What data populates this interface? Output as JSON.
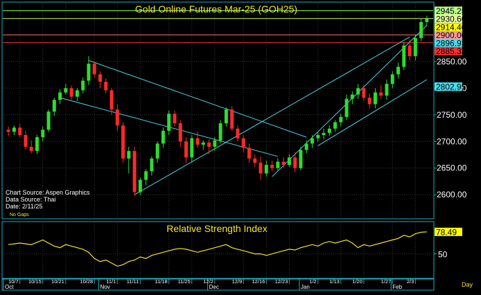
{
  "chart_data": [
    {
      "type": "candlestick",
      "title": "Gold Online Futures Mar-25 (GOH25)",
      "ylim": [
        2560,
        2955
      ],
      "grid": true,
      "price_ticks": [
        "2850.00",
        "2800.00",
        "2750.00",
        "2700.00",
        "2650.00",
        "2600.00"
      ],
      "price_labels": [
        {
          "text": "2945.25",
          "value": 2945.25,
          "bg": "#b8ff8a"
        },
        {
          "text": "2930.60",
          "value": 2930.6,
          "bg": "#e6ff9c"
        },
        {
          "text": "2914.40",
          "value": 2914.4,
          "bg": "#ffff00"
        },
        {
          "text": "2900.00",
          "value": 2900.0,
          "bg": "#ff9a9a"
        },
        {
          "text": "2896.93",
          "value": 2896.93,
          "bg": "#46e0f0"
        },
        {
          "text": "2885.33",
          "value": 2885.33,
          "bg": "#ff3030"
        },
        {
          "text": "2802.95",
          "value": 2802.95,
          "bg": "#46e0f0"
        }
      ],
      "horizontal_lines": [
        {
          "value": 2945.25,
          "color": "#80ff40"
        },
        {
          "value": 2930.6,
          "color": "#c8ff60"
        },
        {
          "value": 2900.0,
          "color": "#ff7070"
        },
        {
          "value": 2885.33,
          "color": "#ff3030"
        }
      ],
      "candles": [
        [
          2722,
          2728,
          2710,
          2718
        ],
        [
          2718,
          2730,
          2712,
          2726
        ],
        [
          2726,
          2732,
          2708,
          2712
        ],
        [
          2712,
          2720,
          2685,
          2690
        ],
        [
          2690,
          2702,
          2678,
          2682
        ],
        [
          2682,
          2712,
          2676,
          2708
        ],
        [
          2708,
          2728,
          2700,
          2722
        ],
        [
          2722,
          2760,
          2718,
          2756
        ],
        [
          2756,
          2782,
          2748,
          2778
        ],
        [
          2778,
          2798,
          2770,
          2792
        ],
        [
          2792,
          2808,
          2788,
          2800
        ],
        [
          2800,
          2805,
          2778,
          2784
        ],
        [
          2784,
          2800,
          2776,
          2796
        ],
        [
          2796,
          2820,
          2790,
          2814
        ],
        [
          2814,
          2860,
          2806,
          2846
        ],
        [
          2846,
          2850,
          2820,
          2826
        ],
        [
          2826,
          2832,
          2800,
          2812
        ],
        [
          2812,
          2818,
          2790,
          2796
        ],
        [
          2796,
          2800,
          2750,
          2760
        ],
        [
          2760,
          2770,
          2720,
          2730
        ],
        [
          2730,
          2736,
          2660,
          2668
        ],
        [
          2668,
          2690,
          2640,
          2682
        ],
        [
          2682,
          2690,
          2598,
          2605
        ],
        [
          2605,
          2632,
          2600,
          2628
        ],
        [
          2628,
          2648,
          2618,
          2644
        ],
        [
          2644,
          2672,
          2636,
          2668
        ],
        [
          2668,
          2700,
          2660,
          2696
        ],
        [
          2696,
          2726,
          2688,
          2720
        ],
        [
          2720,
          2758,
          2712,
          2752
        ],
        [
          2752,
          2758,
          2728,
          2734
        ],
        [
          2734,
          2740,
          2690,
          2700
        ],
        [
          2700,
          2708,
          2660,
          2670
        ],
        [
          2670,
          2712,
          2662,
          2706
        ],
        [
          2706,
          2718,
          2688,
          2694
        ],
        [
          2694,
          2702,
          2684,
          2698
        ],
        [
          2698,
          2704,
          2676,
          2690
        ],
        [
          2690,
          2708,
          2682,
          2702
        ],
        [
          2702,
          2740,
          2696,
          2734
        ],
        [
          2734,
          2764,
          2728,
          2760
        ],
        [
          2760,
          2766,
          2720,
          2724
        ],
        [
          2724,
          2730,
          2700,
          2706
        ],
        [
          2706,
          2712,
          2680,
          2688
        ],
        [
          2688,
          2696,
          2660,
          2668
        ],
        [
          2668,
          2676,
          2652,
          2660
        ],
        [
          2660,
          2672,
          2628,
          2640
        ],
        [
          2640,
          2664,
          2634,
          2656
        ],
        [
          2656,
          2664,
          2644,
          2650
        ],
        [
          2650,
          2668,
          2646,
          2662
        ],
        [
          2662,
          2670,
          2650,
          2656
        ],
        [
          2656,
          2676,
          2652,
          2670
        ],
        [
          2670,
          2680,
          2642,
          2650
        ],
        [
          2650,
          2690,
          2646,
          2684
        ],
        [
          2684,
          2702,
          2678,
          2696
        ],
        [
          2696,
          2712,
          2688,
          2706
        ],
        [
          2706,
          2718,
          2700,
          2712
        ],
        [
          2712,
          2724,
          2704,
          2716
        ],
        [
          2716,
          2730,
          2710,
          2724
        ],
        [
          2724,
          2740,
          2718,
          2736
        ],
        [
          2736,
          2752,
          2728,
          2746
        ],
        [
          2746,
          2788,
          2740,
          2780
        ],
        [
          2780,
          2794,
          2770,
          2788
        ],
        [
          2788,
          2808,
          2780,
          2800
        ],
        [
          2800,
          2806,
          2776,
          2782
        ],
        [
          2782,
          2790,
          2762,
          2770
        ],
        [
          2770,
          2800,
          2762,
          2792
        ],
        [
          2792,
          2806,
          2780,
          2786
        ],
        [
          2786,
          2816,
          2778,
          2808
        ],
        [
          2808,
          2832,
          2800,
          2826
        ],
        [
          2826,
          2848,
          2818,
          2840
        ],
        [
          2840,
          2886,
          2834,
          2880
        ],
        [
          2880,
          2890,
          2852,
          2860
        ],
        [
          2860,
          2900,
          2852,
          2894
        ],
        [
          2894,
          2930,
          2888,
          2924
        ],
        [
          2924,
          2936,
          2916,
          2930
        ]
      ],
      "trend_lines": [
        {
          "from": [
            9,
            2782
          ],
          "to": [
            47,
            2672
          ],
          "color": "#46d6e6"
        },
        {
          "from": [
            14,
            2852
          ],
          "to": [
            52,
            2708
          ],
          "color": "#46d6e6"
        },
        {
          "from": [
            22,
            2600
          ],
          "to": [
            70,
            2896
          ],
          "color": "#46d6e6"
        },
        {
          "from": [
            46,
            2634
          ],
          "to": [
            73,
            2918
          ],
          "color": "#46d6e6"
        },
        {
          "from": [
            54,
            2692
          ],
          "to": [
            73,
            2816
          ],
          "color": "#46d6e6"
        }
      ],
      "x_tick_labels": [
        "10/7",
        "10/15",
        "10/21",
        "10/28",
        "11/1",
        "11/11",
        "11/18",
        "11/25",
        "12/2",
        "12/9",
        "12/16",
        "12/23",
        "1/2",
        "1/13",
        "1/20",
        "1/27",
        "2/3"
      ],
      "month_labels": [
        "Oct",
        "Nov",
        "Dec",
        "Jan",
        "Feb"
      ],
      "x_unit_label": "Day"
    },
    {
      "type": "line",
      "title": "Relative Strength Index",
      "series": [
        {
          "color": "#f5e52a",
          "values": [
            62,
            63,
            64,
            63,
            62,
            65,
            68,
            64,
            60,
            58,
            62,
            60,
            58,
            56,
            52,
            44,
            40,
            42,
            38,
            34,
            36,
            40,
            42,
            46,
            44,
            48,
            50,
            52,
            54,
            56,
            57,
            56,
            54,
            52,
            54,
            56,
            58,
            60,
            62,
            58,
            56,
            54,
            52,
            50,
            50,
            48,
            50,
            52,
            54,
            56,
            55,
            58,
            60,
            62,
            60,
            64,
            66,
            64,
            66,
            68,
            64,
            58,
            62,
            60,
            62,
            64,
            66,
            68,
            70,
            74,
            72,
            76,
            78,
            78.49
          ]
        }
      ],
      "ylim": [
        20,
        90
      ],
      "level_tick": "50",
      "last_value_label": "78.49"
    }
  ],
  "footnotes": {
    "chart_source": "Chart Source: Aspen Graphics",
    "data_source": "Data Source: Thai",
    "date": "Date:   2/11/25",
    "no_gaps": "No Gaps"
  },
  "colors": {
    "up": "#2edd2e",
    "down": "#ff2a2a",
    "frame": "#18b0c4",
    "grid": "#3a3a3a",
    "title": "#f5e52a",
    "text": "#ffffff"
  }
}
